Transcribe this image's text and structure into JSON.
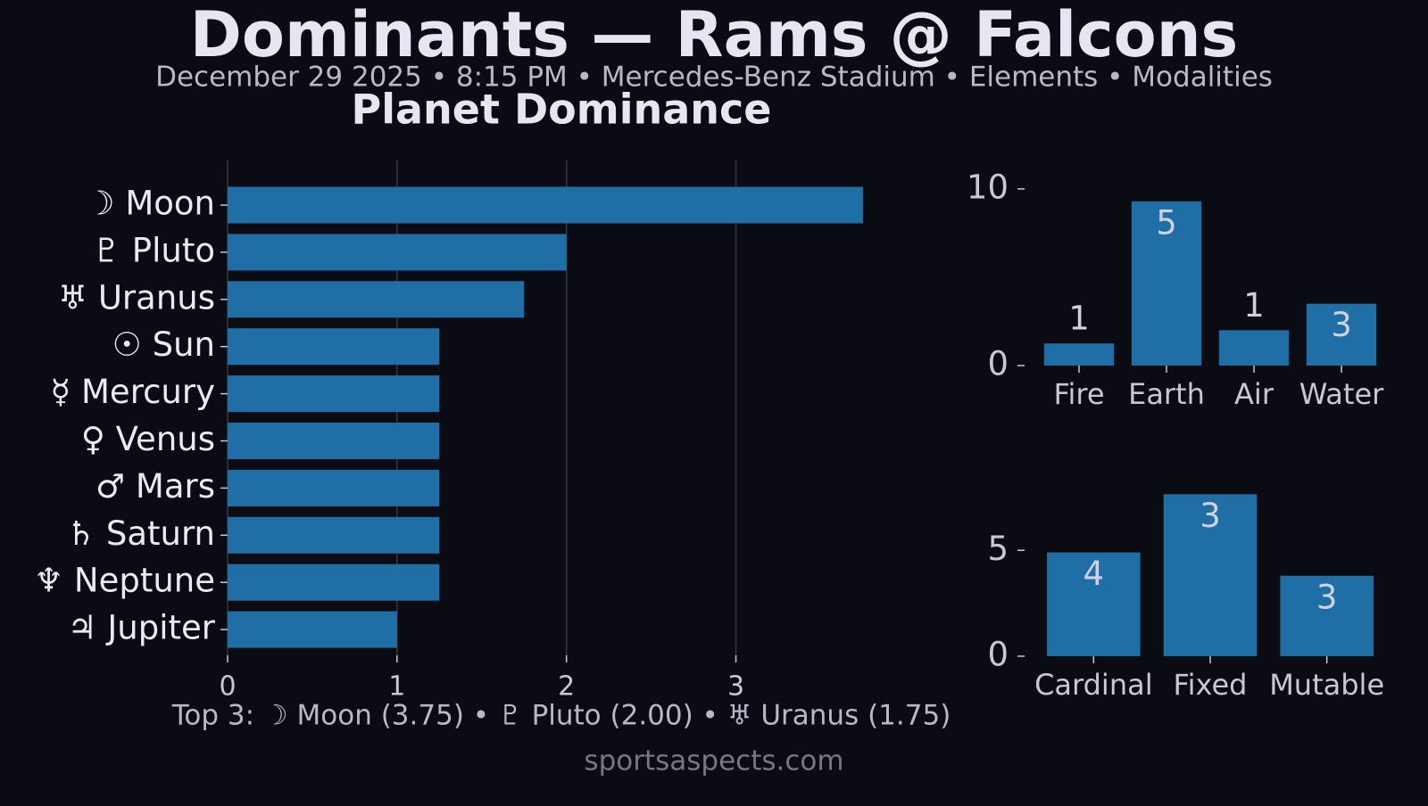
{
  "title": "Dominants — Rams @ Falcons",
  "subtitle": "December 29 2025 • 8:15 PM • Mercedes-Benz Stadium • Elements • Modalities",
  "footer": "sportsaspects.com",
  "chart_data": [
    {
      "type": "barh",
      "title": "Planet Dominance",
      "categories": [
        "☽ Moon",
        "♇ Pluto",
        "♅ Uranus",
        "☉ Sun",
        "☿ Mercury",
        "♀ Venus",
        "♂ Mars",
        "♄ Saturn",
        "♆ Neptune",
        "♃ Jupiter"
      ],
      "values": [
        3.75,
        2.0,
        1.75,
        1.25,
        1.25,
        1.25,
        1.25,
        1.25,
        1.25,
        1.0
      ],
      "color": "#1f6ea6",
      "xlim": [
        0,
        3.94
      ],
      "xticks": [
        0,
        1,
        2,
        3
      ],
      "grid": true,
      "annotation": "Top 3:  ☽ Moon (3.75) • ♇ Pluto (2.00) • ♅ Uranus (1.75)"
    },
    {
      "type": "bar",
      "categories": [
        "Fire",
        "Earth",
        "Air",
        "Water"
      ],
      "values": [
        1.25,
        9.3,
        2.0,
        3.5
      ],
      "counts": [
        1,
        5,
        1,
        3
      ],
      "color": "#1f6ea6",
      "ylim": [
        0,
        10.5
      ],
      "yticks": [
        0,
        10
      ]
    },
    {
      "type": "bar",
      "categories": [
        "Cardinal",
        "Fixed",
        "Mutable"
      ],
      "values": [
        4.9,
        7.65,
        3.8
      ],
      "counts": [
        4,
        3,
        3
      ],
      "color": "#1f6ea6",
      "ylim": [
        0,
        8
      ],
      "yticks": [
        0,
        5
      ]
    }
  ]
}
